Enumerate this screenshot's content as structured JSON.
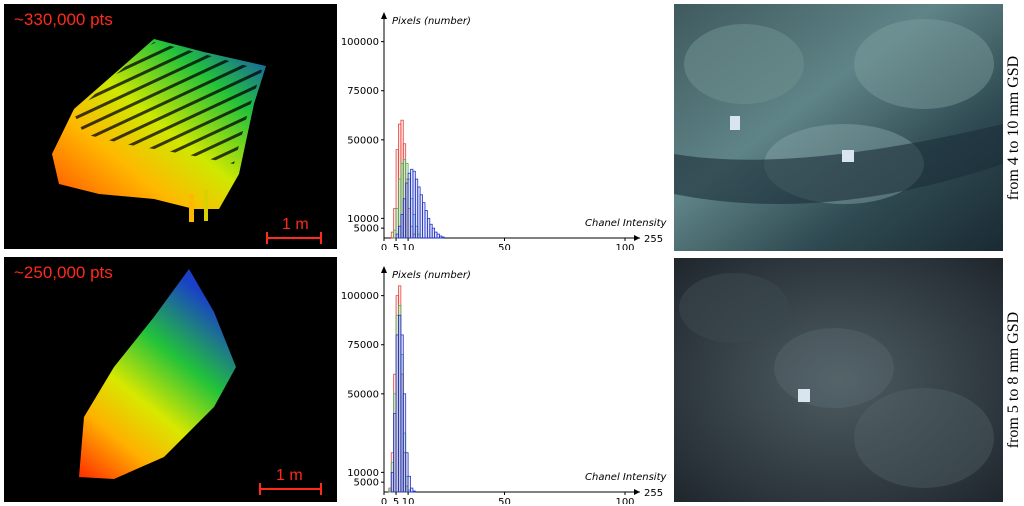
{
  "panels": [
    {
      "points_label": "~330,000 pts",
      "scale_label": "1 m",
      "gsd_label": "from 4 to 10 mm GSD"
    },
    {
      "points_label": "~250,000 pts",
      "scale_label": "1 m",
      "gsd_label": "from 5 to 8 mm GSD"
    }
  ],
  "chart_data": [
    {
      "type": "bar",
      "ylabel": "Pixels (number)",
      "xlabel": "Chanel Intensity",
      "x_max_label": "255",
      "yticks": [
        5000,
        10000,
        50000,
        75000,
        100000
      ],
      "ytick_labels": [
        "5000",
        "10000",
        "50000",
        "75000",
        "100000"
      ],
      "xticks": [
        0,
        5,
        10,
        50,
        100
      ],
      "xtick_labels": [
        "0",
        "5",
        "10",
        "50",
        "100"
      ],
      "xlim": [
        0,
        100
      ],
      "ylim": [
        0,
        110000
      ],
      "x": [
        2,
        3,
        4,
        5,
        6,
        7,
        8,
        9,
        10,
        11,
        12,
        13,
        14,
        15,
        16,
        17,
        18,
        19,
        20,
        21,
        22,
        23,
        24,
        25
      ],
      "series": [
        {
          "color": "#e8453c",
          "values": [
            0,
            3000,
            15000,
            45000,
            58000,
            60000,
            48000,
            30000,
            15000,
            6000,
            2000,
            0,
            0,
            0,
            0,
            0,
            0,
            0,
            0,
            0,
            0,
            0,
            0,
            0
          ]
        },
        {
          "color": "#4caf50",
          "values": [
            0,
            0,
            4000,
            15000,
            30000,
            38000,
            40000,
            38000,
            30000,
            20000,
            12000,
            6000,
            2000,
            0,
            0,
            0,
            0,
            0,
            0,
            0,
            0,
            0,
            0,
            0
          ]
        },
        {
          "color": "#2233cc",
          "values": [
            0,
            0,
            0,
            2000,
            6000,
            12000,
            20000,
            28000,
            33000,
            35000,
            34000,
            30000,
            26000,
            22000,
            18000,
            14000,
            10000,
            7000,
            5000,
            3000,
            2000,
            1000,
            500,
            0
          ]
        }
      ]
    },
    {
      "type": "bar",
      "ylabel": "Pixels (number)",
      "xlabel": "Chanel Intensity",
      "x_max_label": "255",
      "yticks": [
        5000,
        10000,
        50000,
        75000,
        100000
      ],
      "ytick_labels": [
        "5000",
        "10000",
        "50000",
        "75000",
        "100000"
      ],
      "xticks": [
        0,
        5,
        10,
        50,
        100
      ],
      "xtick_labels": [
        "0",
        "5",
        "10",
        "50",
        "100"
      ],
      "xlim": [
        0,
        100
      ],
      "ylim": [
        0,
        110000
      ],
      "x": [
        1,
        2,
        3,
        4,
        5,
        6,
        7,
        8,
        9,
        10,
        11,
        12,
        13,
        14,
        15
      ],
      "series": [
        {
          "color": "#e8453c",
          "values": [
            0,
            2000,
            20000,
            60000,
            100000,
            105000,
            60000,
            20000,
            3000,
            0,
            0,
            0,
            0,
            0,
            0
          ]
        },
        {
          "color": "#4caf50",
          "values": [
            0,
            1000,
            15000,
            50000,
            90000,
            95000,
            70000,
            30000,
            8000,
            1000,
            0,
            0,
            0,
            0,
            0
          ]
        },
        {
          "color": "#2233cc",
          "values": [
            0,
            0,
            10000,
            40000,
            80000,
            90000,
            80000,
            50000,
            20000,
            8000,
            2000,
            500,
            0,
            0,
            0
          ]
        }
      ]
    }
  ]
}
